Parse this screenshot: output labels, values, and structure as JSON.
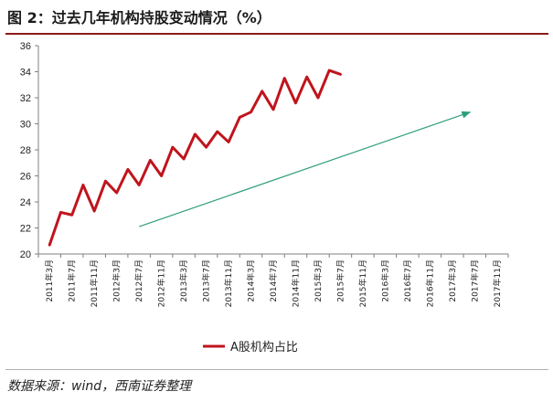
{
  "figure": {
    "title": "图 2：过去几年机构持股变动情况（%）",
    "source": "数据来源：wind，西南证券整理"
  },
  "chart_data": {
    "type": "line",
    "title": "",
    "xlabel": "",
    "ylabel": "",
    "ylim": [
      20,
      36
    ],
    "yticks": [
      20,
      22,
      24,
      26,
      28,
      30,
      32,
      34,
      36
    ],
    "categories": [
      "2011年3月",
      "2011年7月",
      "2011年11月",
      "2012年3月",
      "2012年7月",
      "2012年11月",
      "2013年3月",
      "2013年7月",
      "2013年11月",
      "2014年3月",
      "2014年7月",
      "2014年11月",
      "2015年3月",
      "2015年7月",
      "2015年11月",
      "2016年3月",
      "2016年7月",
      "2016年11月",
      "2017年3月",
      "2017年7月",
      "2017年11月"
    ],
    "grid": false,
    "legend_position": "bottom",
    "series": [
      {
        "name": "A股机构占比",
        "color": "#c0141c",
        "points": [
          {
            "x": 0,
            "y": 20.7
          },
          {
            "x": 0.5,
            "y": 23.2
          },
          {
            "x": 1,
            "y": 23.0
          },
          {
            "x": 1.5,
            "y": 25.3
          },
          {
            "x": 2,
            "y": 23.3
          },
          {
            "x": 2.5,
            "y": 25.6
          },
          {
            "x": 3,
            "y": 24.7
          },
          {
            "x": 3.5,
            "y": 26.5
          },
          {
            "x": 4,
            "y": 25.3
          },
          {
            "x": 4.5,
            "y": 27.2
          },
          {
            "x": 5,
            "y": 26.0
          },
          {
            "x": 5.5,
            "y": 28.2
          },
          {
            "x": 6,
            "y": 27.3
          },
          {
            "x": 6.5,
            "y": 29.2
          },
          {
            "x": 7,
            "y": 28.2
          },
          {
            "x": 7.5,
            "y": 29.4
          },
          {
            "x": 8,
            "y": 28.6
          },
          {
            "x": 8.5,
            "y": 30.5
          },
          {
            "x": 9,
            "y": 30.9
          },
          {
            "x": 9.5,
            "y": 32.5
          },
          {
            "x": 10,
            "y": 31.1
          },
          {
            "x": 10.5,
            "y": 33.5
          },
          {
            "x": 11,
            "y": 31.6
          },
          {
            "x": 11.5,
            "y": 33.6
          },
          {
            "x": 12,
            "y": 32.0
          },
          {
            "x": 12.5,
            "y": 34.1
          },
          {
            "x": 13,
            "y": 33.8
          }
        ]
      }
    ],
    "annotations": [
      {
        "type": "trend-arrow",
        "color": "#2e9e7e",
        "from": {
          "x": 4,
          "y": 22.1
        },
        "to": {
          "x": 18.8,
          "y": 30.9
        }
      }
    ]
  }
}
